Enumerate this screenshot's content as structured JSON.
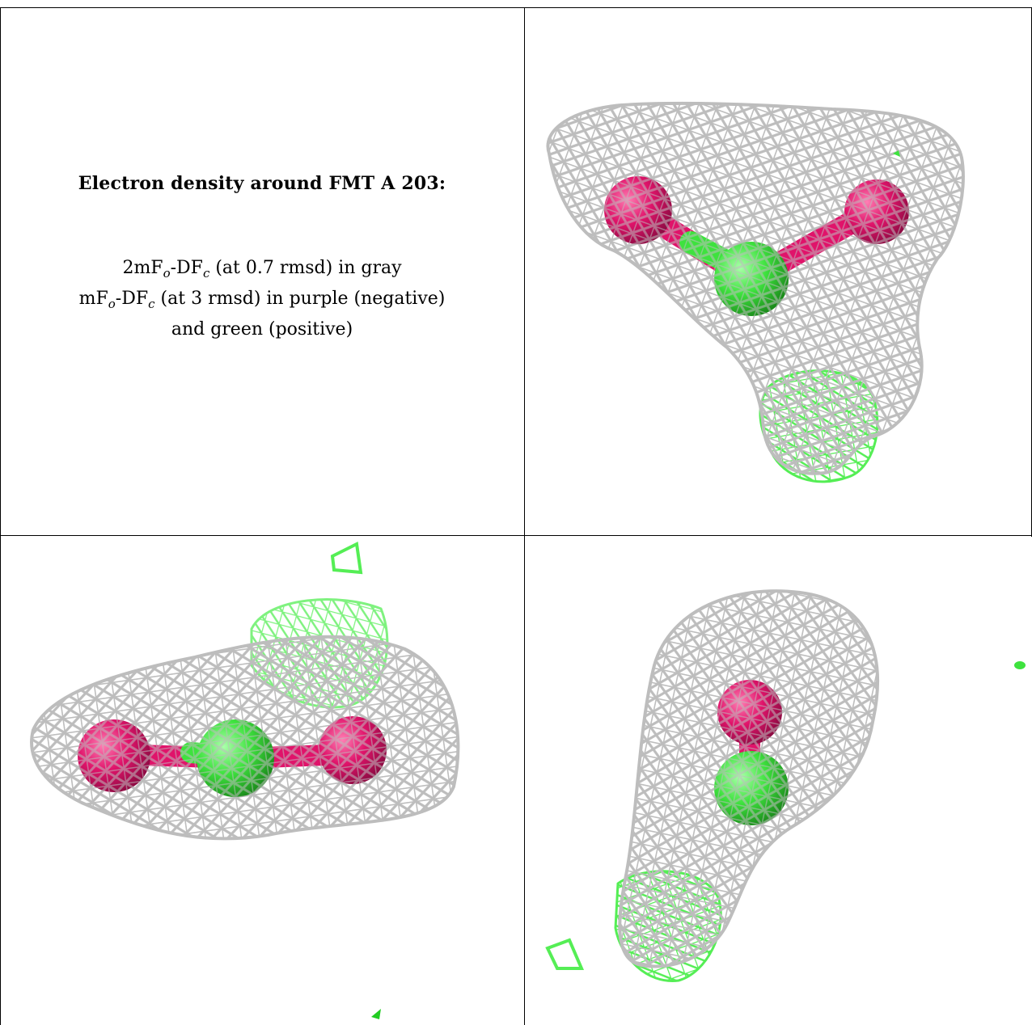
{
  "caption": {
    "title": "Electron density around FMT A 203:",
    "line1": {
      "prefix": "2mF",
      "sub_o": "o",
      "mid": "-DF",
      "sub_c": "c",
      "suffix": " (at 0.7 rmsd) in gray"
    },
    "line2": {
      "prefix": "mF",
      "sub_o": "o",
      "mid": "-DF",
      "sub_c": "c",
      "suffix": " (at 3 rmsd) in purple (negative)"
    },
    "line3": "and green (positive)"
  },
  "colors": {
    "mesh_gray": "#bdbdbd",
    "mesh_green": "#55ee55",
    "oxygen_magenta": "#e0136a",
    "carbon_green": "#3ee23e",
    "border": "#000000"
  },
  "views": [
    {
      "name": "view-top-right",
      "molecule": "FMT A 203"
    },
    {
      "name": "view-bottom-left",
      "molecule": "FMT A 203"
    },
    {
      "name": "view-bottom-right",
      "molecule": "FMT A 203"
    }
  ]
}
